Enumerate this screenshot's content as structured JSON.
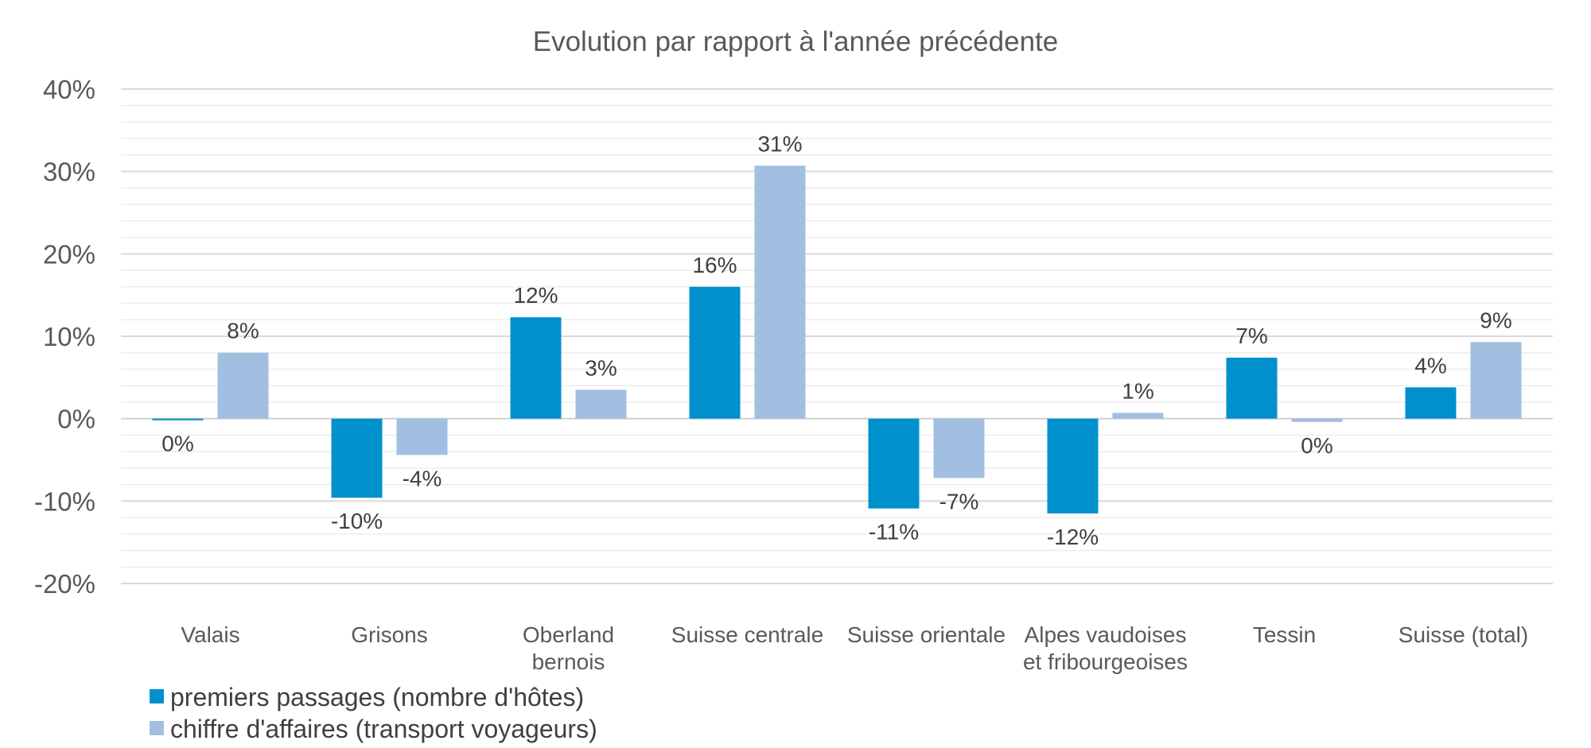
{
  "chart_data": {
    "type": "bar",
    "title": "Evolution par rapport à l'année précédente",
    "xlabel": "",
    "ylabel": "",
    "ylim": [
      -20,
      40
    ],
    "y_ticks": [
      40,
      30,
      20,
      10,
      0,
      -10,
      -20
    ],
    "y_tick_labels": [
      "40%",
      "30%",
      "20%",
      "10%",
      "0%",
      "-10%",
      "-20%"
    ],
    "categories": [
      [
        "Valais"
      ],
      [
        "Grisons"
      ],
      [
        "Oberland",
        "bernois"
      ],
      [
        "Suisse centrale"
      ],
      [
        "Suisse orientale"
      ],
      [
        "Alpes vaudoises",
        "et fribourgeoises"
      ],
      [
        "Tessin"
      ],
      [
        "Suisse (total)"
      ]
    ],
    "series": [
      {
        "name": "premiers passages (nombre d'hôtes)",
        "color": "#0091CD",
        "values": [
          -0.2,
          -9.6,
          12.3,
          16.0,
          -10.9,
          -11.5,
          7.4,
          3.8
        ],
        "labels": [
          "0%",
          "-10%",
          "12%",
          "16%",
          "-11%",
          "-12%",
          "7%",
          "4%"
        ]
      },
      {
        "name": "chiffre d'affaires (transport voyageurs)",
        "color": "#A2BFE1",
        "values": [
          8.0,
          -4.4,
          3.5,
          30.7,
          -7.2,
          0.7,
          -0.4,
          9.3
        ],
        "labels": [
          "8%",
          "-4%",
          "3%",
          "31%",
          "-7%",
          "1%",
          "0%",
          "9%"
        ]
      }
    ],
    "grid": true,
    "legend_position": "bottom-left"
  }
}
